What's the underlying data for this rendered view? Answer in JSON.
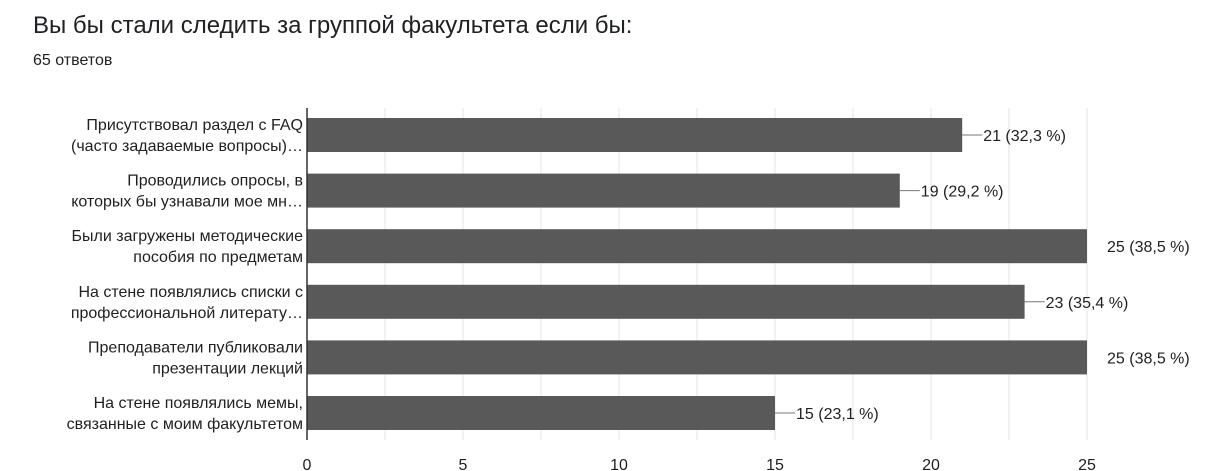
{
  "question": {
    "title": "Вы бы стали следить за группой факультета если бы:",
    "response_count": "65 ответов"
  },
  "chart_data": {
    "type": "bar",
    "orientation": "horizontal",
    "categories": [
      [
        "Присутствовал раздел с FAQ",
        "(часто задаваемые вопросы)…"
      ],
      [
        "Проводились опросы, в",
        "которых бы узнавали мое мн…"
      ],
      [
        "Были загружены методические",
        "пособия по предметам"
      ],
      [
        "На стене появлялись списки с",
        "профессиональной литерату…"
      ],
      [
        "Преподаватели публиковали",
        "презентации лекций"
      ],
      [
        "На стене появлялись мемы,",
        "связанные с моим факультетом"
      ]
    ],
    "values": [
      21,
      19,
      25,
      23,
      25,
      15
    ],
    "data_labels": [
      "21 (32,3 %)",
      "19 (29,2 %)",
      "25 (38,5 %)",
      "23 (35,4 %)",
      "25 (38,5 %)",
      "15 (23,1 %)"
    ],
    "xlim": [
      0,
      25
    ],
    "xticks": [
      0,
      5,
      10,
      15,
      20,
      25
    ],
    "grid": true,
    "colors": {
      "bar": "#595959",
      "grid": "#e6e6e6",
      "axis": "#333333",
      "leader": "#777777",
      "text": "#212121"
    }
  }
}
